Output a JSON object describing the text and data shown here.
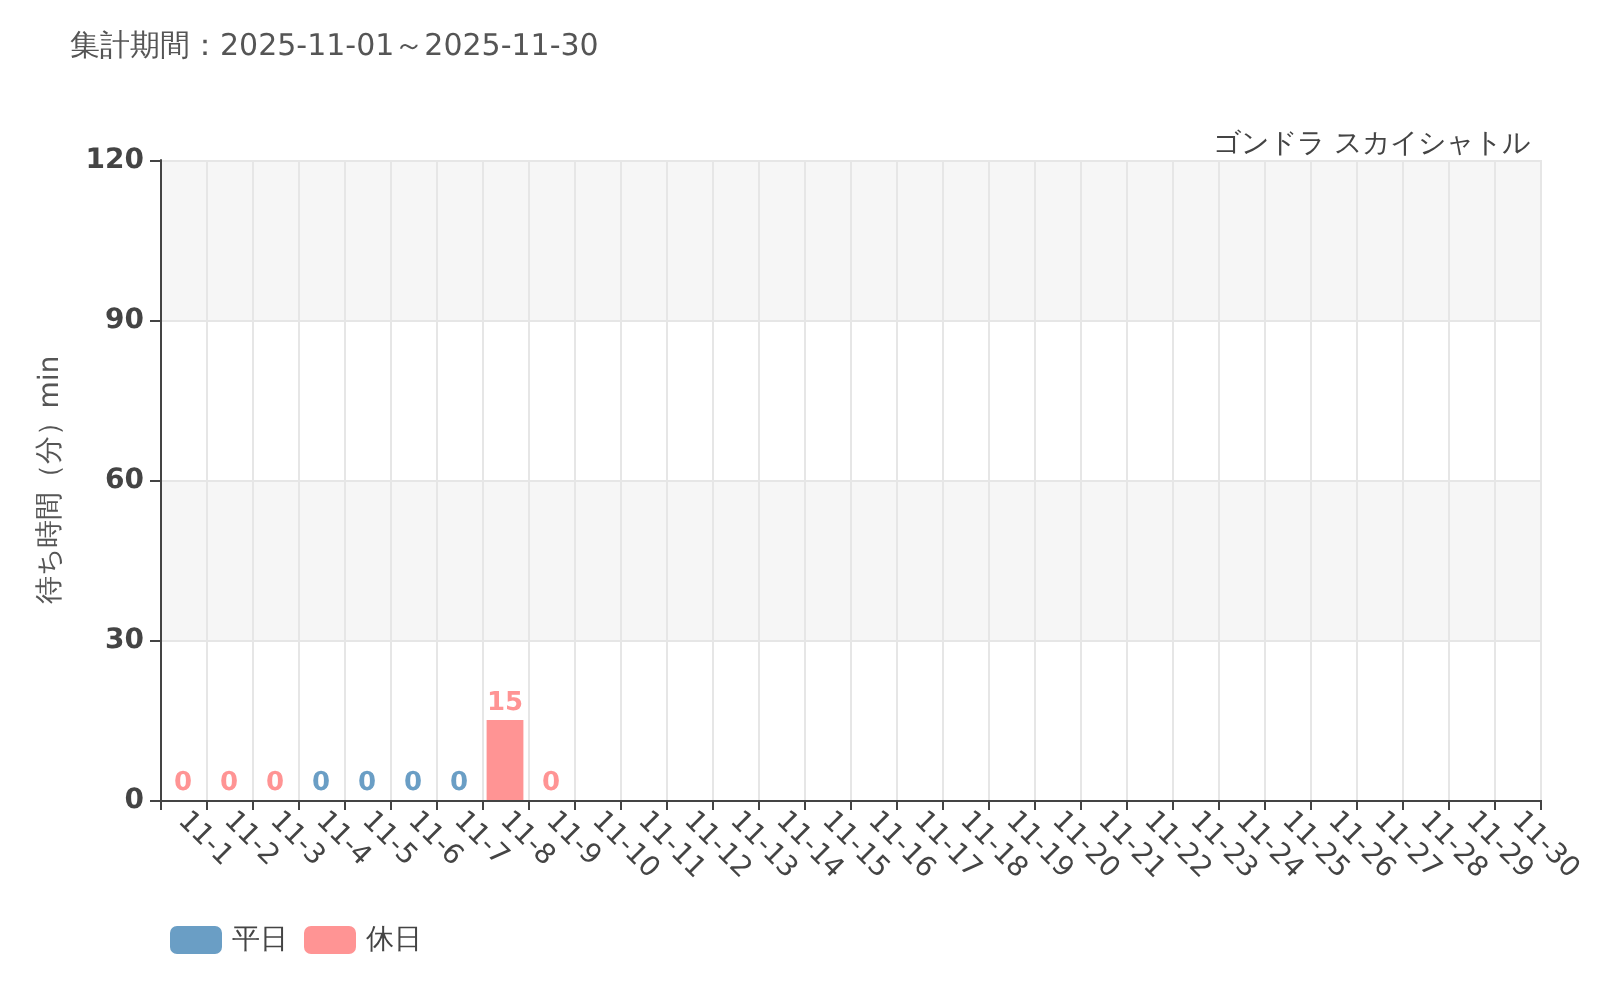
{
  "chart_data": {
    "type": "bar",
    "title": "集計期間：2025-11-01～2025-11-30",
    "subtitle": "ゴンドラ スカイシャトル",
    "ylabel": "待ち時間（分）min",
    "categories": [
      "11-1",
      "11-2",
      "11-3",
      "11-4",
      "11-5",
      "11-6",
      "11-7",
      "11-8",
      "11-9",
      "11-10",
      "11-11",
      "11-12",
      "11-13",
      "11-14",
      "11-15",
      "11-16",
      "11-17",
      "11-18",
      "11-19",
      "11-20",
      "11-21",
      "11-22",
      "11-23",
      "11-24",
      "11-25",
      "11-26",
      "11-27",
      "11-28",
      "11-29",
      "11-30"
    ],
    "series": [
      {
        "name": "平日",
        "color": "#6a9ec5",
        "values": [
          null,
          null,
          null,
          0,
          0,
          0,
          0,
          null,
          null,
          null,
          null,
          null,
          null,
          null,
          null,
          null,
          null,
          null,
          null,
          null,
          null,
          null,
          null,
          null,
          null,
          null,
          null,
          null,
          null,
          null
        ]
      },
      {
        "name": "休日",
        "color": "#ff9494",
        "values": [
          0,
          0,
          0,
          null,
          null,
          null,
          null,
          15,
          0,
          null,
          null,
          null,
          null,
          null,
          null,
          null,
          null,
          null,
          null,
          null,
          null,
          null,
          null,
          null,
          null,
          null,
          null,
          null,
          null,
          null
        ]
      }
    ],
    "ylim": [
      0,
      120
    ],
    "yticks": [
      0,
      30,
      60,
      90,
      120
    ],
    "grid": true,
    "legend": "bottom left",
    "data_labels": true
  }
}
